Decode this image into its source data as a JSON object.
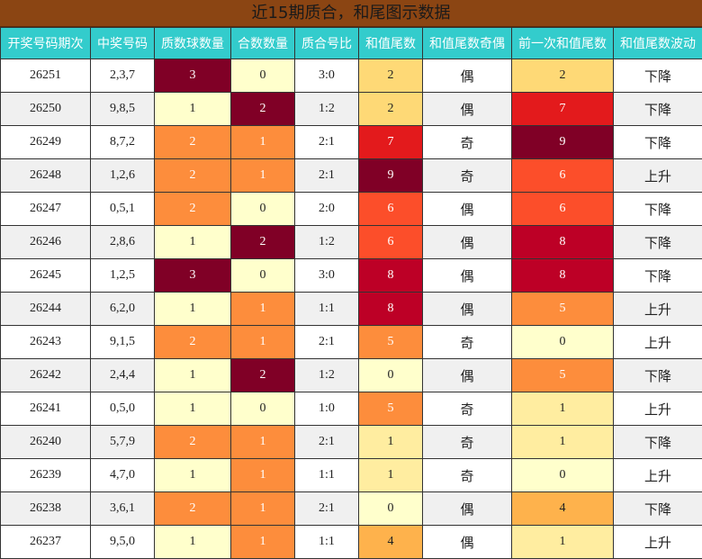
{
  "title": "近15期质合，和尾图示数据",
  "chart_data": {
    "type": "table",
    "title": "近15期质合，和尾图示数据",
    "columns": [
      "开奖号码期次",
      "中奖号码",
      "质数球数量",
      "合数数量",
      "质合号比",
      "和值尾数",
      "和值尾数奇偶",
      "前一次和值尾数",
      "和值尾数波动"
    ],
    "rows": [
      [
        "26251",
        "2,3,7",
        "3",
        "0",
        "3:0",
        "2",
        "偶",
        "2",
        "下降"
      ],
      [
        "26250",
        "9,8,5",
        "1",
        "2",
        "1:2",
        "2",
        "偶",
        "7",
        "下降"
      ],
      [
        "26249",
        "8,7,2",
        "2",
        "1",
        "2:1",
        "7",
        "奇",
        "9",
        "下降"
      ],
      [
        "26248",
        "1,2,6",
        "2",
        "1",
        "2:1",
        "9",
        "奇",
        "6",
        "上升"
      ],
      [
        "26247",
        "0,5,1",
        "2",
        "0",
        "2:0",
        "6",
        "偶",
        "6",
        "下降"
      ],
      [
        "26246",
        "2,8,6",
        "1",
        "2",
        "1:2",
        "6",
        "偶",
        "8",
        "下降"
      ],
      [
        "26245",
        "1,2,5",
        "3",
        "0",
        "3:0",
        "8",
        "偶",
        "8",
        "下降"
      ],
      [
        "26244",
        "6,2,0",
        "1",
        "1",
        "1:1",
        "8",
        "偶",
        "5",
        "上升"
      ],
      [
        "26243",
        "9,1,5",
        "2",
        "1",
        "2:1",
        "5",
        "奇",
        "0",
        "上升"
      ],
      [
        "26242",
        "2,4,4",
        "1",
        "2",
        "1:2",
        "0",
        "偶",
        "5",
        "下降"
      ],
      [
        "26241",
        "0,5,0",
        "1",
        "0",
        "1:0",
        "5",
        "奇",
        "1",
        "上升"
      ],
      [
        "26240",
        "5,7,9",
        "2",
        "1",
        "2:1",
        "1",
        "奇",
        "1",
        "下降"
      ],
      [
        "26239",
        "4,7,0",
        "1",
        "1",
        "1:1",
        "1",
        "奇",
        "0",
        "上升"
      ],
      [
        "26238",
        "3,6,1",
        "2",
        "1",
        "2:1",
        "0",
        "偶",
        "4",
        "下降"
      ],
      [
        "26237",
        "9,5,0",
        "1",
        "1",
        "1:1",
        "4",
        "偶",
        "1",
        "上升"
      ]
    ]
  },
  "colors": {
    "title_bg": "#8b4513",
    "header_bg": "#33cccc",
    "row_alt": "#f0f0f0",
    "count_scale": {
      "0": "#ffffcc",
      "1": "#ffffcc",
      "2": "#fd8d3c",
      "3": "#800026"
    },
    "composite_scale": {
      "0": "#ffffcc",
      "1": "#fd8d3c",
      "2": "#800026"
    },
    "tail_scale": {
      "0": "#ffffcc",
      "1": "#ffeda0",
      "2": "#fed976",
      "4": "#feb24c",
      "5": "#fd8d3c",
      "6": "#fc4e2a",
      "7": "#e31a1c",
      "8": "#bd0026",
      "9": "#800026"
    }
  }
}
